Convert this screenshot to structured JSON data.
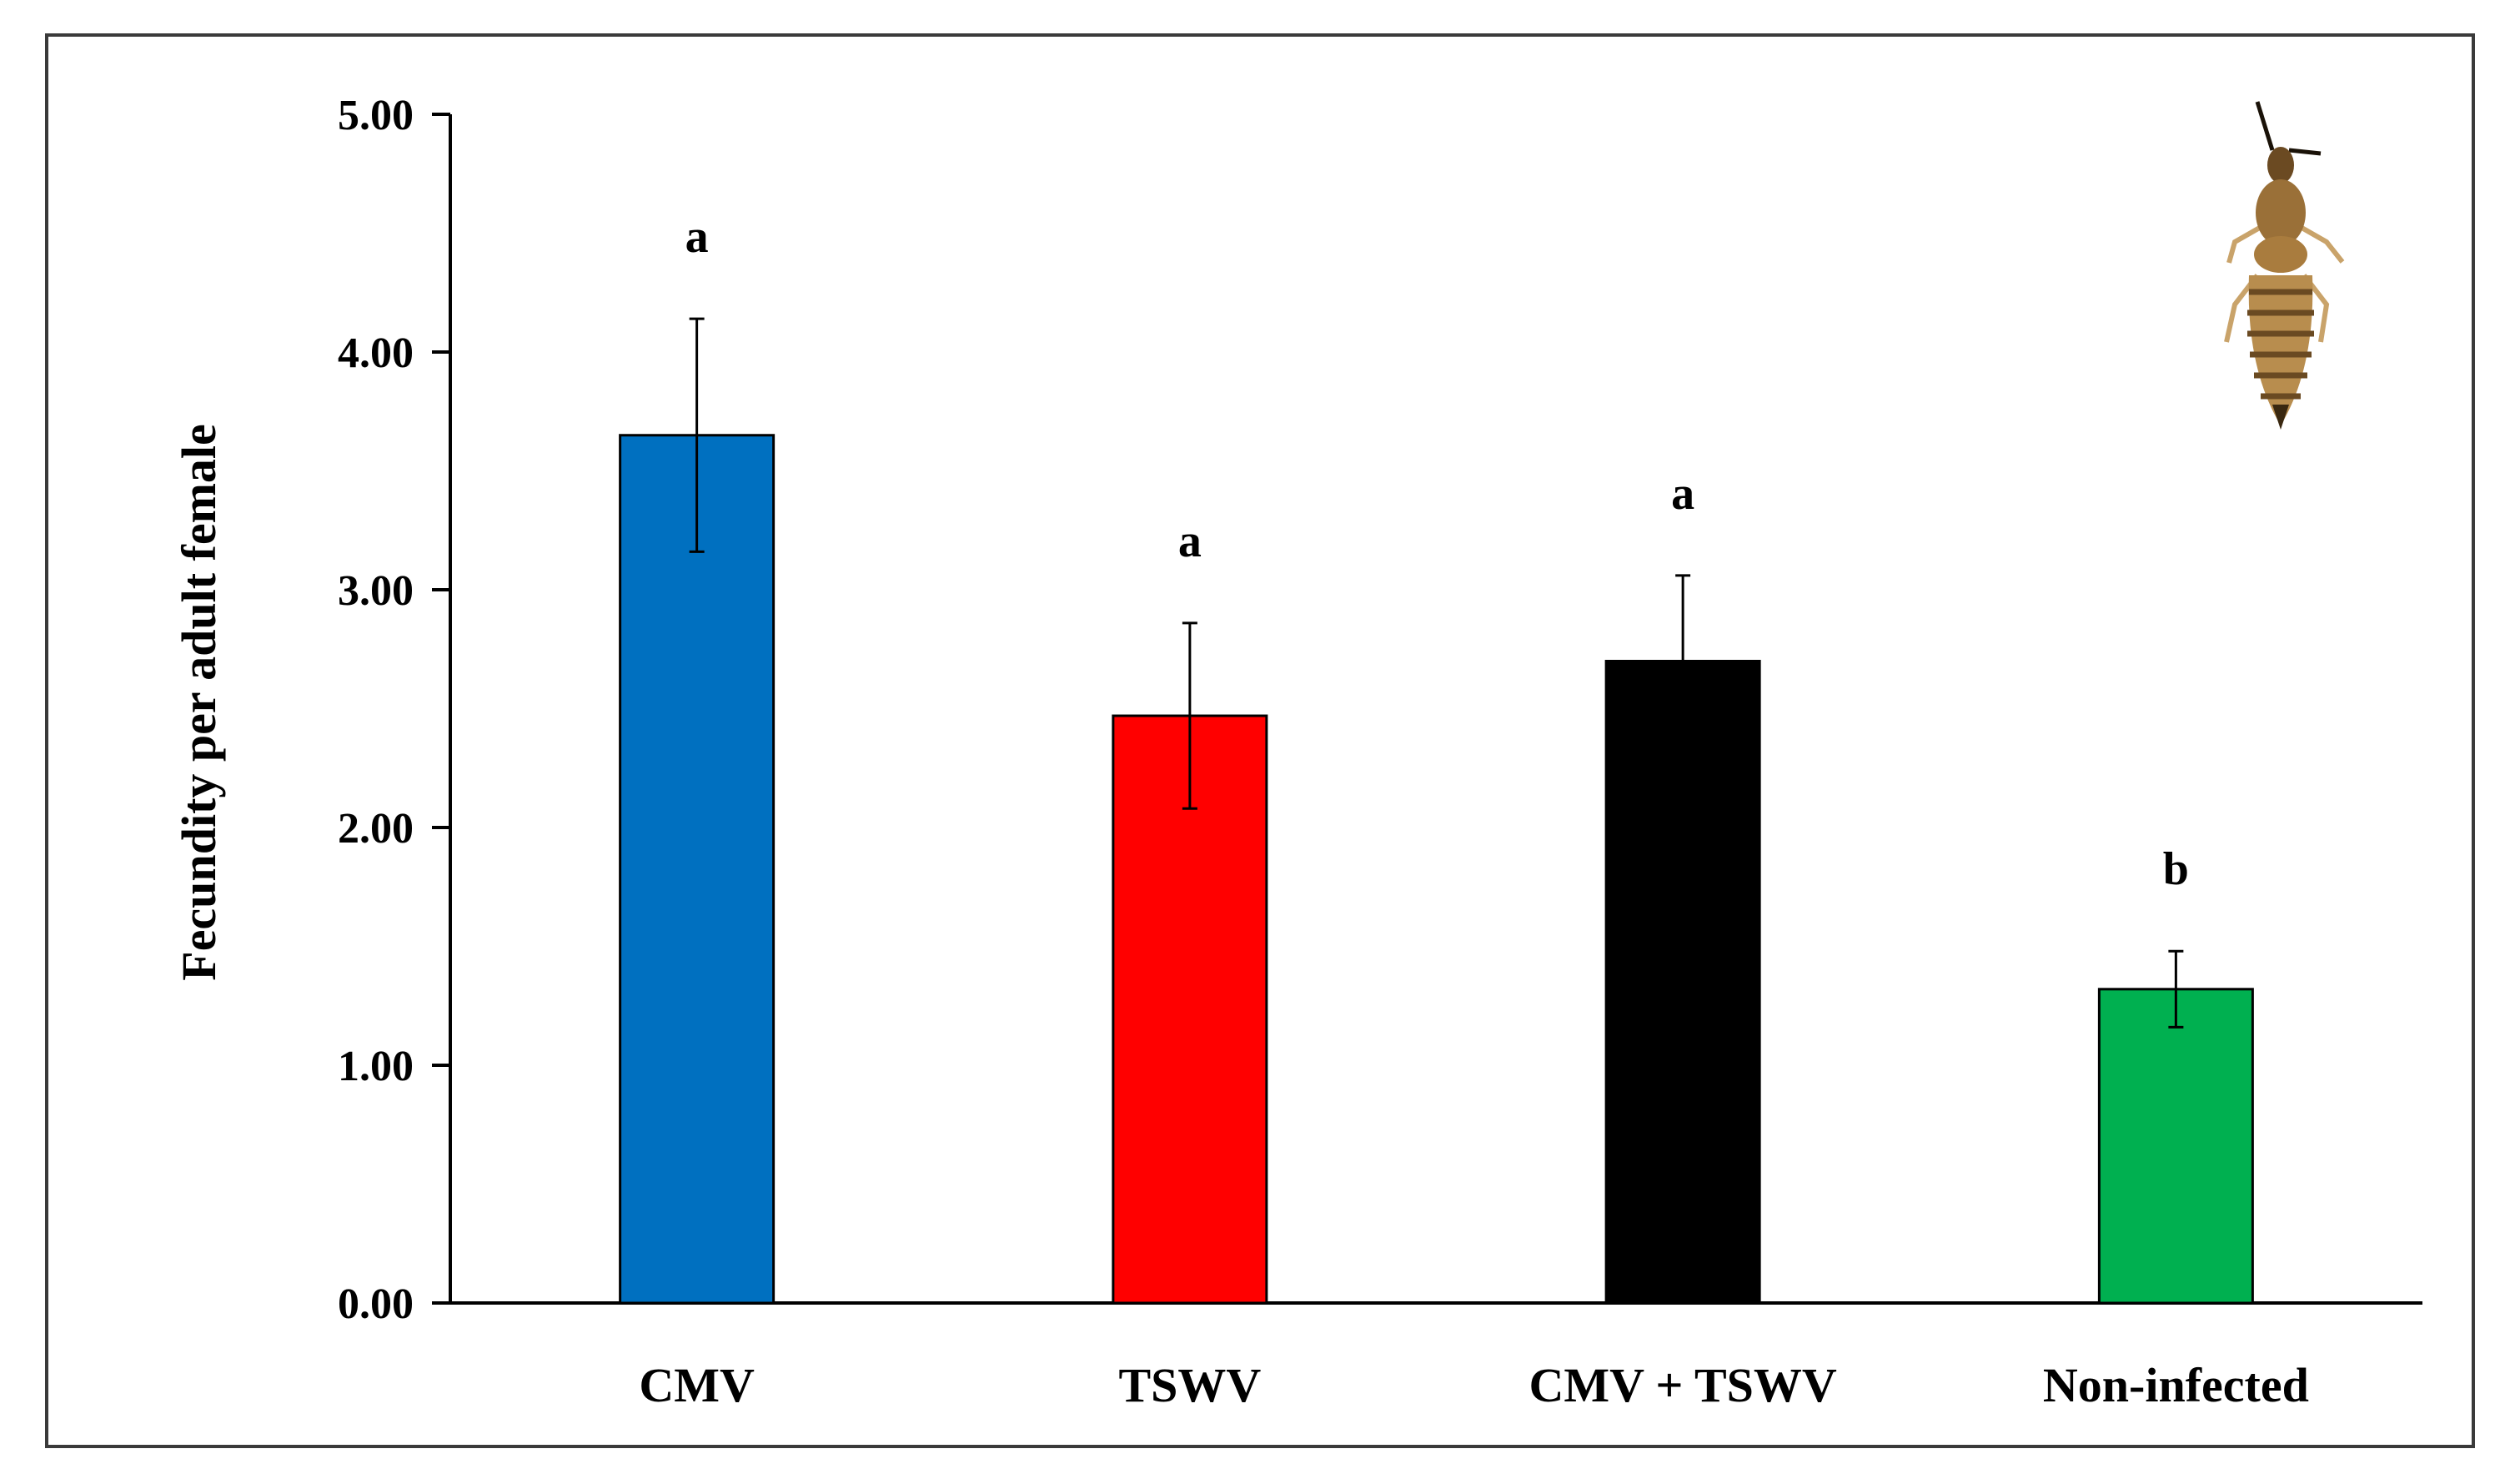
{
  "chart_data": {
    "type": "bar",
    "title": "",
    "xlabel": "",
    "ylabel": "Fecundity per adult female",
    "ylim": [
      0,
      5
    ],
    "yticks": [
      "0.00",
      "1.00",
      "2.00",
      "3.00",
      "4.00",
      "5.00"
    ],
    "grid": false,
    "legend": "none",
    "categories": [
      "CMV",
      "TSWV",
      "CMV + TSWV",
      "Non-infected"
    ],
    "values": [
      3.65,
      2.47,
      2.7,
      1.32
    ],
    "errors": [
      0.49,
      0.39,
      0.36,
      0.16
    ],
    "significance_letters": [
      "a",
      "a",
      "a",
      "b"
    ],
    "colors": [
      "#0070C0",
      "#FF0000",
      "#000000",
      "#00B050"
    ]
  },
  "decorations": {
    "insect_image": "thrips-insect-icon"
  }
}
